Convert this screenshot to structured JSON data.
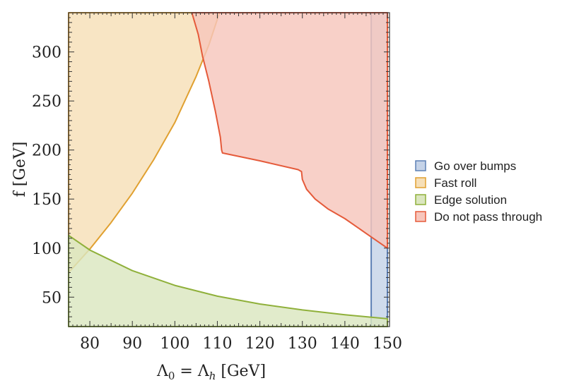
{
  "chart_data": {
    "type": "area",
    "title": "",
    "xlabel": "Λ₀ = Λh [GeV]",
    "xlabel_parts": {
      "main": "Λ",
      "sub1": "0",
      "eq": " = Λ",
      "sub2": "h",
      "unit": " [GeV]"
    },
    "ylabel": "f [GeV]",
    "xlim": [
      75,
      150.5
    ],
    "ylim": [
      20,
      340
    ],
    "x_ticks": [
      80,
      90,
      100,
      110,
      120,
      130,
      140,
      150
    ],
    "y_ticks": [
      50,
      100,
      150,
      200,
      250,
      300
    ],
    "grid": false,
    "legend_position": "right",
    "series": [
      {
        "name": "Go over bumps",
        "fill": "#c5d3e8",
        "stroke": "#5d80b5",
        "boundary": [
          [
            146.2,
            20
          ],
          [
            146.2,
            340
          ],
          [
            150,
            340
          ],
          [
            150,
            20
          ]
        ]
      },
      {
        "name": "Fast roll",
        "fill": "#f6dfb7",
        "stroke": "#e0a030",
        "boundary": [
          [
            75,
            75
          ],
          [
            80,
            99
          ],
          [
            85,
            126
          ],
          [
            90,
            156
          ],
          [
            95,
            190
          ],
          [
            100,
            228
          ],
          [
            105,
            275
          ],
          [
            108,
            307
          ],
          [
            110.5,
            340
          ],
          [
            75,
            340
          ]
        ]
      },
      {
        "name": "Edge solution",
        "fill": "#dbe6bf",
        "stroke": "#8fb03a",
        "boundary": [
          [
            75,
            113
          ],
          [
            80,
            98
          ],
          [
            90,
            77
          ],
          [
            100,
            62
          ],
          [
            110,
            51
          ],
          [
            120,
            43
          ],
          [
            130,
            37
          ],
          [
            140,
            32
          ],
          [
            150,
            28
          ],
          [
            150,
            20
          ],
          [
            75,
            20
          ]
        ]
      },
      {
        "name": "Do not pass through",
        "fill": "#f7c6bc",
        "stroke": "#e55a3a",
        "boundary": [
          [
            104,
            340
          ],
          [
            105.5,
            318
          ],
          [
            106.5,
            296
          ],
          [
            108,
            270
          ],
          [
            109.5,
            240
          ],
          [
            110.7,
            213
          ],
          [
            111,
            200
          ],
          [
            111.2,
            197
          ],
          [
            120,
            189
          ],
          [
            129,
            180
          ],
          [
            129.8,
            178
          ],
          [
            130,
            170
          ],
          [
            131,
            160
          ],
          [
            133,
            150
          ],
          [
            136,
            140
          ],
          [
            140,
            130
          ],
          [
            145,
            115
          ],
          [
            150,
            100
          ],
          [
            150,
            340
          ]
        ]
      }
    ]
  }
}
